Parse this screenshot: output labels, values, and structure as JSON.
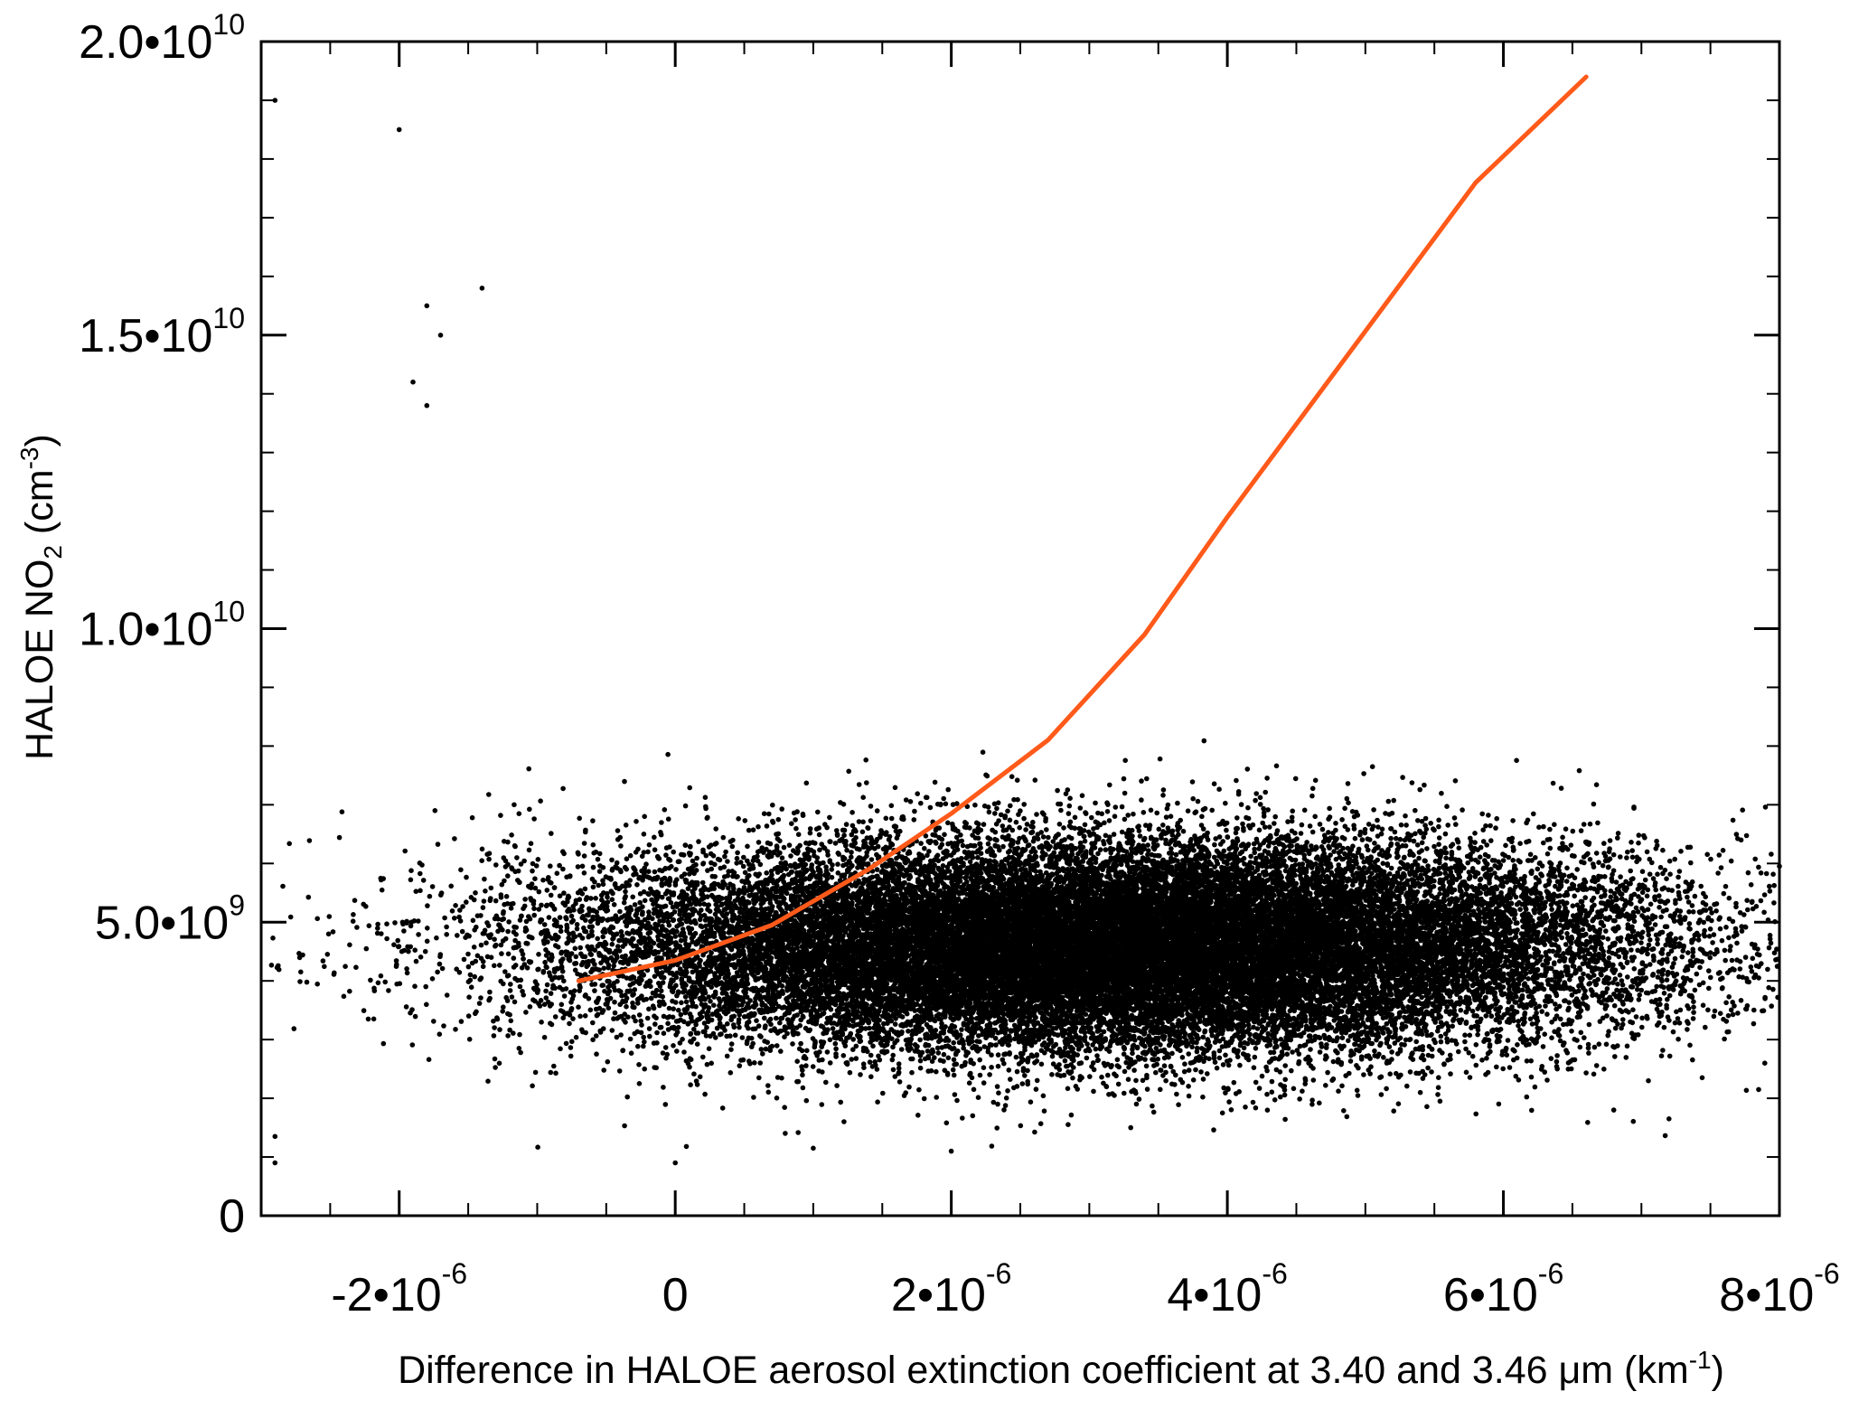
{
  "chart_data": {
    "type": "scatter",
    "title": "",
    "xlabel": {
      "prefix": "Difference in HALOE aerosol extinction coefficient at 3.40 and 3.46 μm (km",
      "superscript": "-1",
      "suffix": ")"
    },
    "ylabel": {
      "prefix": "HALOE NO",
      "subscript": "2",
      "middle": " (cm",
      "superscript": "-3",
      "suffix": ")"
    },
    "xlim": [
      -3e-06,
      8e-06
    ],
    "ylim": [
      0,
      20000000000.0
    ],
    "xticks": [
      {
        "value": -2e-06,
        "base": "-2•10",
        "exponent": "-6"
      },
      {
        "value": 0,
        "base": "0",
        "exponent": ""
      },
      {
        "value": 2e-06,
        "base": "2•10",
        "exponent": "-6"
      },
      {
        "value": 4e-06,
        "base": "4•10",
        "exponent": "-6"
      },
      {
        "value": 6e-06,
        "base": "6•10",
        "exponent": "-6"
      },
      {
        "value": 8e-06,
        "base": "8•10",
        "exponent": "-6"
      }
    ],
    "yticks": [
      {
        "value": 0,
        "base": "0",
        "exponent": ""
      },
      {
        "value": 5000000000.0,
        "base": "5.0•10",
        "exponent": "9"
      },
      {
        "value": 10000000000.0,
        "base": "1.0•10",
        "exponent": "10"
      },
      {
        "value": 15000000000.0,
        "base": "1.5•10",
        "exponent": "10"
      },
      {
        "value": 20000000000.0,
        "base": "2.0•10",
        "exponent": "10"
      }
    ],
    "x_minor_step": 5e-07,
    "y_minor_step": 1000000000.0,
    "grid": false,
    "legend": "none",
    "series": [
      {
        "type": "scatter",
        "color": "#000000",
        "point_count": 30000,
        "distribution": {
          "x_center": 3.2e-06,
          "x_spread": 1.9e-06,
          "y_intercept": 4600000000.0,
          "y_slope": 1800,
          "y_spread_at_x0": 900000000.0,
          "y_spread_per_x": 260
        },
        "sample_points": [
          [
            -2.9e-06,
            19000000000.0
          ],
          [
            -2e-06,
            18500000000.0
          ],
          [
            -1.8e-06,
            15500000000.0
          ],
          [
            -1.7e-06,
            15000000000.0
          ],
          [
            -1.9e-06,
            14200000000.0
          ],
          [
            -1.4e-06,
            15800000000.0
          ],
          [
            -1.8e-06,
            13800000000.0
          ],
          [
            -2.9e-06,
            900000000.0
          ],
          [
            0.0,
            900000000.0
          ],
          [
            1e-06,
            1150000000.0
          ],
          [
            2e-06,
            1100000000.0
          ],
          [
            3.3e-06,
            1500000000.0
          ],
          [
            6.8e-06,
            1800000000.0
          ],
          [
            7.2e-06,
            1650000000.0
          ],
          [
            -2.9e-06,
            1350000000.0
          ]
        ]
      },
      {
        "type": "line",
        "color": "#ff5a1a",
        "x": [
          -7e-07,
          0.0,
          7e-07,
          1.4e-06,
          2e-06,
          2.7e-06,
          3.4e-06,
          4e-06,
          4.6e-06,
          5.2e-06,
          5.8e-06,
          6.6e-06
        ],
        "y": [
          4000000000.0,
          4350000000.0,
          4950000000.0,
          5900000000.0,
          6850000000.0,
          8100000000.0,
          9900000000.0,
          11900000000.0,
          13800000000.0,
          15700000000.0,
          17600000000.0,
          19400000000.0
        ]
      }
    ]
  }
}
